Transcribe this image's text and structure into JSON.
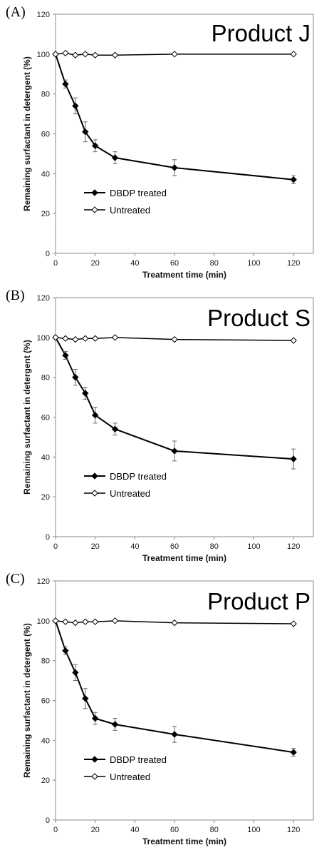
{
  "chart_data": [
    {
      "type": "line",
      "panel_label": "(A)",
      "product": "Product J",
      "xlabel": "Treatment time (min)",
      "ylabel": "Remaining surfactant in detergent (%)",
      "xlim": [
        0,
        130
      ],
      "ylim": [
        0,
        120
      ],
      "xticks": [
        0,
        20,
        40,
        60,
        80,
        100,
        120
      ],
      "yticks": [
        0,
        20,
        40,
        60,
        80,
        100,
        120
      ],
      "series": [
        {
          "name": "DBDP treated",
          "marker": "filled-diamond",
          "x": [
            0,
            5,
            10,
            15,
            20,
            30,
            60,
            120
          ],
          "y": [
            100,
            85,
            74,
            61,
            54,
            48,
            43,
            37
          ],
          "err": [
            0,
            2,
            4,
            5,
            3,
            3,
            4,
            2
          ]
        },
        {
          "name": "Untreated",
          "marker": "open-diamond",
          "x": [
            0,
            5,
            10,
            15,
            20,
            30,
            60,
            120
          ],
          "y": [
            100,
            100.5,
            99.5,
            100,
            99.5,
            99.5,
            100,
            100
          ],
          "err": [
            0,
            0,
            0,
            0,
            0,
            0,
            0,
            0
          ]
        }
      ]
    },
    {
      "type": "line",
      "panel_label": "(B)",
      "product": "Product S",
      "xlabel": "Treatment time (min)",
      "ylabel": "Remaining surfactant in detergent (%)",
      "xlim": [
        0,
        130
      ],
      "ylim": [
        0,
        120
      ],
      "xticks": [
        0,
        20,
        40,
        60,
        80,
        100,
        120
      ],
      "yticks": [
        0,
        20,
        40,
        60,
        80,
        100,
        120
      ],
      "series": [
        {
          "name": "DBDP treated",
          "marker": "filled-diamond",
          "x": [
            0,
            5,
            10,
            15,
            20,
            30,
            60,
            120
          ],
          "y": [
            100,
            91,
            80,
            72,
            61,
            54,
            43,
            39
          ],
          "err": [
            0,
            2,
            4,
            3,
            4,
            3,
            5,
            5
          ]
        },
        {
          "name": "Untreated",
          "marker": "open-diamond",
          "x": [
            0,
            5,
            10,
            15,
            20,
            30,
            60,
            120
          ],
          "y": [
            100,
            99.5,
            99,
            99.5,
            99.5,
            100,
            99,
            98.5
          ],
          "err": [
            0,
            0,
            0,
            0,
            0,
            0,
            0,
            0
          ]
        }
      ]
    },
    {
      "type": "line",
      "panel_label": "(C)",
      "product": "Product P",
      "xlabel": "Treatment time (min)",
      "ylabel": "Remaining surfactant in detergent (%)",
      "xlim": [
        0,
        130
      ],
      "ylim": [
        0,
        120
      ],
      "xticks": [
        0,
        20,
        40,
        60,
        80,
        100,
        120
      ],
      "yticks": [
        0,
        20,
        40,
        60,
        80,
        100,
        120
      ],
      "series": [
        {
          "name": "DBDP treated",
          "marker": "filled-diamond",
          "x": [
            0,
            5,
            10,
            15,
            20,
            30,
            60,
            120
          ],
          "y": [
            100,
            85,
            74,
            61,
            51,
            48,
            43,
            34
          ],
          "err": [
            0,
            2,
            4,
            5,
            3,
            3,
            4,
            2
          ]
        },
        {
          "name": "Untreated",
          "marker": "open-diamond",
          "x": [
            0,
            5,
            10,
            15,
            20,
            30,
            60,
            120
          ],
          "y": [
            100,
            99.5,
            99,
            99.5,
            99.5,
            100,
            99,
            98.5
          ],
          "err": [
            0,
            0,
            0,
            0,
            0,
            0,
            0,
            0
          ]
        }
      ]
    }
  ]
}
